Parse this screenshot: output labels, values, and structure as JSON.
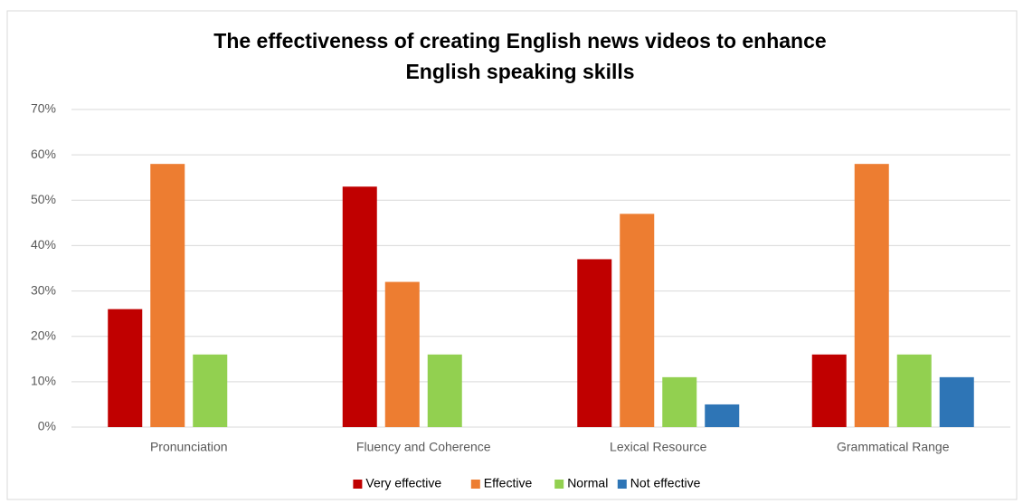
{
  "chart_data": {
    "type": "bar",
    "title": [
      "The effectiveness of creating English news videos to enhance",
      "English speaking skills"
    ],
    "categories": [
      "Pronunciation",
      "Fluency and Coherence",
      "Lexical Resource",
      "Grammatical Range"
    ],
    "series": [
      {
        "name": "Very effective",
        "color": "#c00000",
        "values": [
          26,
          53,
          37,
          16
        ]
      },
      {
        "name": "Effective",
        "color": "#ed7d31",
        "values": [
          58,
          32,
          47,
          58
        ]
      },
      {
        "name": "Normal",
        "color": "#92d050",
        "values": [
          16,
          16,
          11,
          16
        ]
      },
      {
        "name": "Not effective",
        "color": "#2e75b6",
        "values": [
          0,
          0,
          5,
          11
        ]
      }
    ],
    "ylim": [
      0,
      70
    ],
    "yticks": [
      {
        "value": 0,
        "label": "0%"
      },
      {
        "value": 10,
        "label": "10%"
      },
      {
        "value": 20,
        "label": "20%"
      },
      {
        "value": 30,
        "label": "30%"
      },
      {
        "value": 40,
        "label": "40%"
      },
      {
        "value": 50,
        "label": "50%"
      },
      {
        "value": 60,
        "label": "60%"
      },
      {
        "value": 70,
        "label": "70%"
      }
    ],
    "grid": true,
    "legend": "bottom"
  }
}
